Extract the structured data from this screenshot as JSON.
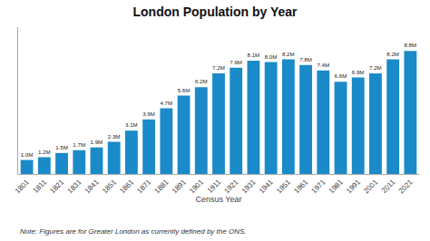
{
  "chart_data": {
    "type": "bar",
    "title": "London Population by Year",
    "xlabel": "Census Year",
    "annotations": [
      "Note: Figures are for Greater London as currently defined by the ONS."
    ],
    "categories": [
      "1801",
      "1811",
      "1821",
      "1831",
      "1841",
      "1851",
      "1861",
      "1871",
      "1881",
      "1891",
      "1901",
      "1911",
      "1921",
      "1931",
      "1941",
      "1951",
      "1961",
      "1971",
      "1981",
      "1991",
      "2001",
      "2011",
      "2021"
    ],
    "values": [
      1.0,
      1.2,
      1.5,
      1.7,
      1.9,
      2.3,
      3.1,
      3.9,
      4.7,
      5.6,
      6.2,
      7.2,
      7.6,
      8.1,
      8.0,
      8.2,
      7.8,
      7.4,
      6.6,
      6.9,
      7.2,
      8.2,
      8.8
    ],
    "value_labels": [
      "1.0M",
      "1.2M",
      "1.5M",
      "1.7M",
      "1.9M",
      "2.3M",
      "3.1M",
      "3.9M",
      "4.7M",
      "5.6M",
      "6.2M",
      "7.2M",
      "7.6M",
      "8.1M",
      "8.0M",
      "8.2M",
      "7.8M",
      "7.4M",
      "6.6M",
      "6.9M",
      "7.2M",
      "8.2M",
      "8.8M"
    ],
    "color": "#1a8ac8",
    "ylim": [
      0,
      10.5
    ],
    "yticks": [],
    "tick_labels": "x",
    "data_labels": true,
    "grid": false
  }
}
